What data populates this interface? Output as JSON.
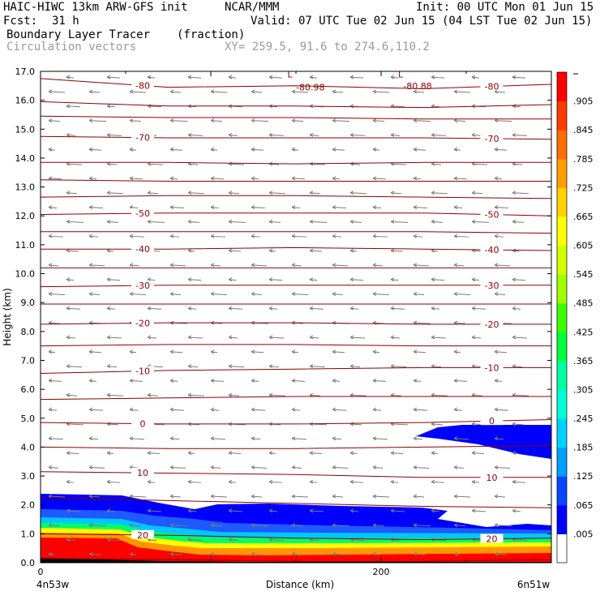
{
  "header": {
    "model_line": "HAIC-HIWC 13km ARW-GFS init",
    "org": "NCAR/MMM",
    "init": "Init: 00 UTC Mon 01 Jun 15",
    "fcst_label": "Fcst:",
    "fcst_value": "31 h",
    "valid": "Valid: 07 UTC Tue 02 Jun 15 (04 LST Tue 02 Jun 15)",
    "field_name": "Boundary Layer Tracer",
    "field_units": "(fraction)",
    "vector_label": "Circulation vectors",
    "xy_label": "XY= 259.5, 91.6 to 274.6,110.2"
  },
  "chart_data": {
    "type": "heatmap",
    "ylabel": "Height (km)",
    "xlabel": "Distance (km)",
    "ylim": [
      0,
      17
    ],
    "xlim": [
      0,
      300
    ],
    "yticks": [
      "0.0",
      "1.0",
      "2.0",
      "3.0",
      "4.0",
      "5.0",
      "6.0",
      "7.0",
      "8.0",
      "9.0",
      "10.0",
      "11.0",
      "12.0",
      "13.0",
      "14.0",
      "15.0",
      "16.0",
      "17.0"
    ],
    "xticks": [
      {
        "x": 0,
        "label": "0"
      },
      {
        "x": 200,
        "label": "200"
      }
    ],
    "x_end_labels": {
      "left": "4n53w",
      "right": "6n51w"
    },
    "colorbar": {
      "levels": [
        ".005",
        ".065",
        ".125",
        ".185",
        ".245",
        ".305",
        ".365",
        ".425",
        ".485",
        ".545",
        ".605",
        ".665",
        ".725",
        ".785",
        ".845",
        ".905"
      ],
      "colors": [
        "#ffffff",
        "#0000ff",
        "#0a46ff",
        "#00a0ff",
        "#00d2ff",
        "#00ffd8",
        "#00ffa0",
        "#00ff3c",
        "#3cff00",
        "#a0ff00",
        "#d2ff00",
        "#ffff00",
        "#ffd200",
        "#ffa000",
        "#ff6e00",
        "#ff3c00",
        "#ff0000"
      ]
    },
    "temperature_contours": [
      {
        "label": "-80",
        "y": [
          16.75,
          16.45,
          16.5,
          16.4,
          16.55
        ]
      },
      {
        "label": "",
        "y": [
          15.95,
          15.8,
          15.8,
          15.75,
          15.85
        ]
      },
      {
        "label": "",
        "y": [
          15.45,
          15.4,
          15.4,
          15.35,
          15.35
        ]
      },
      {
        "label": "-70",
        "y": [
          14.75,
          14.7,
          14.7,
          14.7,
          14.65
        ]
      },
      {
        "label": "",
        "y": [
          13.85,
          13.85,
          13.8,
          13.85,
          13.85
        ]
      },
      {
        "label": "",
        "y": [
          13.25,
          13.2,
          13.2,
          13.2,
          13.2
        ]
      },
      {
        "label": "",
        "y": [
          12.65,
          12.7,
          12.7,
          12.65,
          12.6
        ]
      },
      {
        "label": "-50",
        "y": [
          12.05,
          12.1,
          12.1,
          12.1,
          12.0
        ]
      },
      {
        "label": "",
        "y": [
          11.45,
          11.45,
          11.45,
          11.45,
          11.4
        ]
      },
      {
        "label": "-40",
        "y": [
          10.85,
          10.85,
          10.9,
          10.85,
          10.8
        ]
      },
      {
        "label": "",
        "y": [
          10.2,
          10.2,
          10.2,
          10.2,
          10.2
        ]
      },
      {
        "label": "-30",
        "y": [
          9.55,
          9.6,
          9.6,
          9.6,
          9.6
        ]
      },
      {
        "label": "",
        "y": [
          8.95,
          8.95,
          8.95,
          8.95,
          8.95
        ]
      },
      {
        "label": "-20",
        "y": [
          8.25,
          8.3,
          8.3,
          8.25,
          8.25
        ]
      },
      {
        "label": "",
        "y": [
          7.5,
          7.55,
          7.55,
          7.5,
          7.5
        ]
      },
      {
        "label": "-10",
        "y": [
          6.55,
          6.65,
          6.7,
          6.75,
          6.75
        ]
      },
      {
        "label": "",
        "y": [
          5.65,
          5.7,
          5.75,
          5.75,
          5.75
        ]
      },
      {
        "label": "0",
        "y": [
          4.85,
          4.8,
          4.8,
          4.85,
          4.95
        ]
      },
      {
        "label": "",
        "y": [
          4.0,
          3.95,
          3.95,
          4.0,
          4.05
        ]
      },
      {
        "label": "10",
        "y": [
          3.15,
          3.1,
          3.05,
          2.95,
          2.95
        ]
      },
      {
        "label": "",
        "y": [
          2.25,
          2.15,
          2.05,
          1.95,
          1.9
        ]
      },
      {
        "label": "20",
        "y": [
          1.0,
          0.95,
          0.85,
          0.8,
          0.85
        ]
      },
      {
        "label": "",
        "y": [
          0.15,
          0.1,
          0.05,
          0.05,
          0.1
        ]
      }
    ],
    "annotations": [
      {
        "text": "L",
        "x": 145,
        "y": 16.9
      },
      {
        "text": "-80.98",
        "x": 150,
        "y": 16.45
      },
      {
        "text": "L",
        "x": 210,
        "y": 16.9
      },
      {
        "text": "-80.88",
        "x": 213,
        "y": 16.5
      }
    ]
  }
}
